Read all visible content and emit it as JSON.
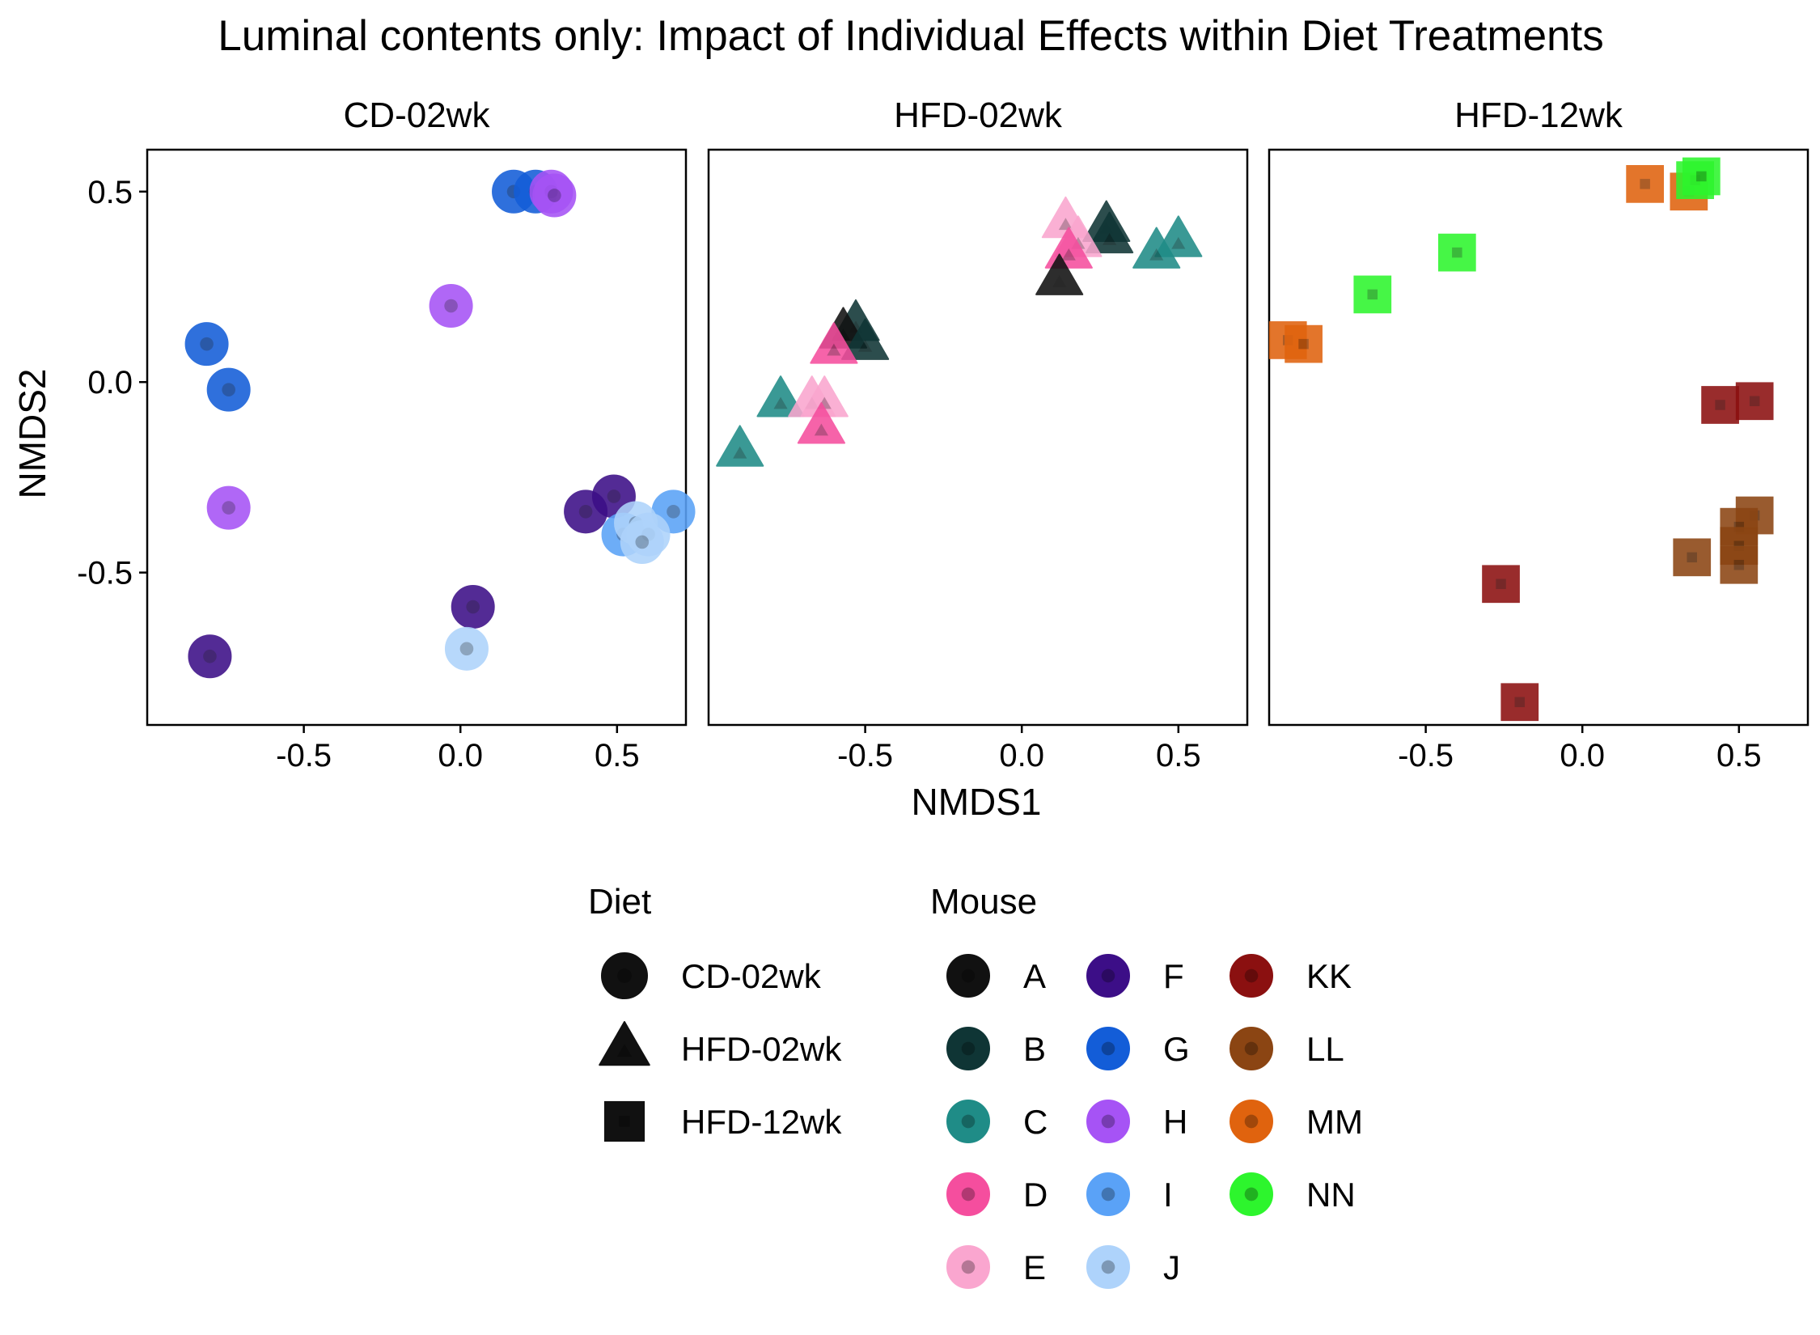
{
  "chart_data": {
    "type": "scatter",
    "title": "Luminal contents only: Impact of Individual Effects within Diet Treatments",
    "xlabel": "NMDS1",
    "ylabel": "NMDS2",
    "xlim": [
      -1.0,
      0.72
    ],
    "ylim": [
      -0.9,
      0.61
    ],
    "x_ticks": [
      {
        "value": -0.5,
        "label": "-0.5"
      },
      {
        "value": 0.0,
        "label": "0.0"
      },
      {
        "value": 0.5,
        "label": "0.5"
      }
    ],
    "y_ticks": [
      {
        "value": 0.5,
        "label": "0.5"
      },
      {
        "value": 0.0,
        "label": "0.0"
      },
      {
        "value": -0.5,
        "label": "-0.5"
      }
    ],
    "grid": false,
    "legend_position": "bottom",
    "facets": [
      {
        "label": "CD-02wk",
        "shape": "circle",
        "points": [
          {
            "mouse": "G",
            "x": 0.17,
            "y": 0.5
          },
          {
            "mouse": "G",
            "x": 0.24,
            "y": 0.5
          },
          {
            "mouse": "H",
            "x": 0.29,
            "y": 0.5
          },
          {
            "mouse": "H",
            "x": 0.3,
            "y": 0.49
          },
          {
            "mouse": "H",
            "x": -0.03,
            "y": 0.2
          },
          {
            "mouse": "G",
            "x": -0.81,
            "y": 0.1
          },
          {
            "mouse": "G",
            "x": -0.74,
            "y": -0.02
          },
          {
            "mouse": "H",
            "x": -0.74,
            "y": -0.33
          },
          {
            "mouse": "F",
            "x": 0.4,
            "y": -0.34
          },
          {
            "mouse": "F",
            "x": 0.49,
            "y": -0.3
          },
          {
            "mouse": "I",
            "x": 0.52,
            "y": -0.4
          },
          {
            "mouse": "I",
            "x": 0.68,
            "y": -0.34
          },
          {
            "mouse": "J",
            "x": 0.56,
            "y": -0.37
          },
          {
            "mouse": "J",
            "x": 0.6,
            "y": -0.4
          },
          {
            "mouse": "J",
            "x": 0.58,
            "y": -0.42
          },
          {
            "mouse": "F",
            "x": 0.04,
            "y": -0.59
          },
          {
            "mouse": "F",
            "x": -0.8,
            "y": -0.72
          },
          {
            "mouse": "J",
            "x": 0.02,
            "y": -0.7
          }
        ]
      },
      {
        "label": "HFD-02wk",
        "shape": "triangle",
        "points": [
          {
            "mouse": "E",
            "x": 0.14,
            "y": 0.42
          },
          {
            "mouse": "B",
            "x": 0.27,
            "y": 0.41
          },
          {
            "mouse": "B",
            "x": 0.28,
            "y": 0.38
          },
          {
            "mouse": "C",
            "x": 0.5,
            "y": 0.37
          },
          {
            "mouse": "E",
            "x": 0.18,
            "y": 0.37
          },
          {
            "mouse": "D",
            "x": 0.15,
            "y": 0.34
          },
          {
            "mouse": "C",
            "x": 0.43,
            "y": 0.34
          },
          {
            "mouse": "A",
            "x": 0.12,
            "y": 0.27
          },
          {
            "mouse": "B",
            "x": -0.53,
            "y": 0.15
          },
          {
            "mouse": "A",
            "x": -0.57,
            "y": 0.13
          },
          {
            "mouse": "B",
            "x": -0.5,
            "y": 0.1
          },
          {
            "mouse": "D",
            "x": -0.6,
            "y": 0.09
          },
          {
            "mouse": "C",
            "x": -0.77,
            "y": -0.05
          },
          {
            "mouse": "E",
            "x": -0.67,
            "y": -0.05
          },
          {
            "mouse": "E",
            "x": -0.63,
            "y": -0.05
          },
          {
            "mouse": "D",
            "x": -0.64,
            "y": -0.12
          },
          {
            "mouse": "C",
            "x": -0.9,
            "y": -0.18
          }
        ]
      },
      {
        "label": "HFD-12wk",
        "shape": "square",
        "points": [
          {
            "mouse": "MM",
            "x": 0.2,
            "y": 0.52
          },
          {
            "mouse": "MM",
            "x": 0.34,
            "y": 0.5
          },
          {
            "mouse": "NN",
            "x": 0.36,
            "y": 0.53
          },
          {
            "mouse": "NN",
            "x": 0.38,
            "y": 0.54
          },
          {
            "mouse": "NN",
            "x": -0.4,
            "y": 0.34
          },
          {
            "mouse": "NN",
            "x": -0.67,
            "y": 0.23
          },
          {
            "mouse": "MM",
            "x": -0.94,
            "y": 0.11
          },
          {
            "mouse": "MM",
            "x": -0.89,
            "y": 0.1
          },
          {
            "mouse": "KK",
            "x": 0.44,
            "y": -0.06
          },
          {
            "mouse": "KK",
            "x": 0.55,
            "y": -0.05
          },
          {
            "mouse": "LL",
            "x": 0.55,
            "y": -0.35
          },
          {
            "mouse": "LL",
            "x": 0.5,
            "y": -0.38
          },
          {
            "mouse": "LL",
            "x": 0.5,
            "y": -0.43
          },
          {
            "mouse": "LL",
            "x": 0.35,
            "y": -0.46
          },
          {
            "mouse": "LL",
            "x": 0.5,
            "y": -0.48
          },
          {
            "mouse": "KK",
            "x": -0.26,
            "y": -0.53
          },
          {
            "mouse": "KK",
            "x": -0.2,
            "y": -0.84
          }
        ]
      }
    ],
    "legend_diet": {
      "title": "Diet",
      "items": [
        {
          "label": "CD-02wk",
          "shape": "circle"
        },
        {
          "label": "HFD-02wk",
          "shape": "triangle"
        },
        {
          "label": "HFD-12wk",
          "shape": "square"
        }
      ]
    },
    "legend_mouse": {
      "title": "Mouse",
      "items": [
        {
          "label": "A",
          "color": "#111111"
        },
        {
          "label": "B",
          "color": "#0F3535"
        },
        {
          "label": "C",
          "color": "#1F8C87"
        },
        {
          "label": "D",
          "color": "#F54E9E"
        },
        {
          "label": "E",
          "color": "#FAA6CF"
        },
        {
          "label": "F",
          "color": "#3C0E87"
        },
        {
          "label": "G",
          "color": "#135DD8"
        },
        {
          "label": "H",
          "color": "#A653F5"
        },
        {
          "label": "I",
          "color": "#5AA2F7"
        },
        {
          "label": "J",
          "color": "#AED3FB"
        },
        {
          "label": "KK",
          "color": "#8B1010"
        },
        {
          "label": "LL",
          "color": "#8B4513"
        },
        {
          "label": "MM",
          "color": "#E0630E"
        },
        {
          "label": "NN",
          "color": "#2DF52D"
        }
      ]
    }
  }
}
